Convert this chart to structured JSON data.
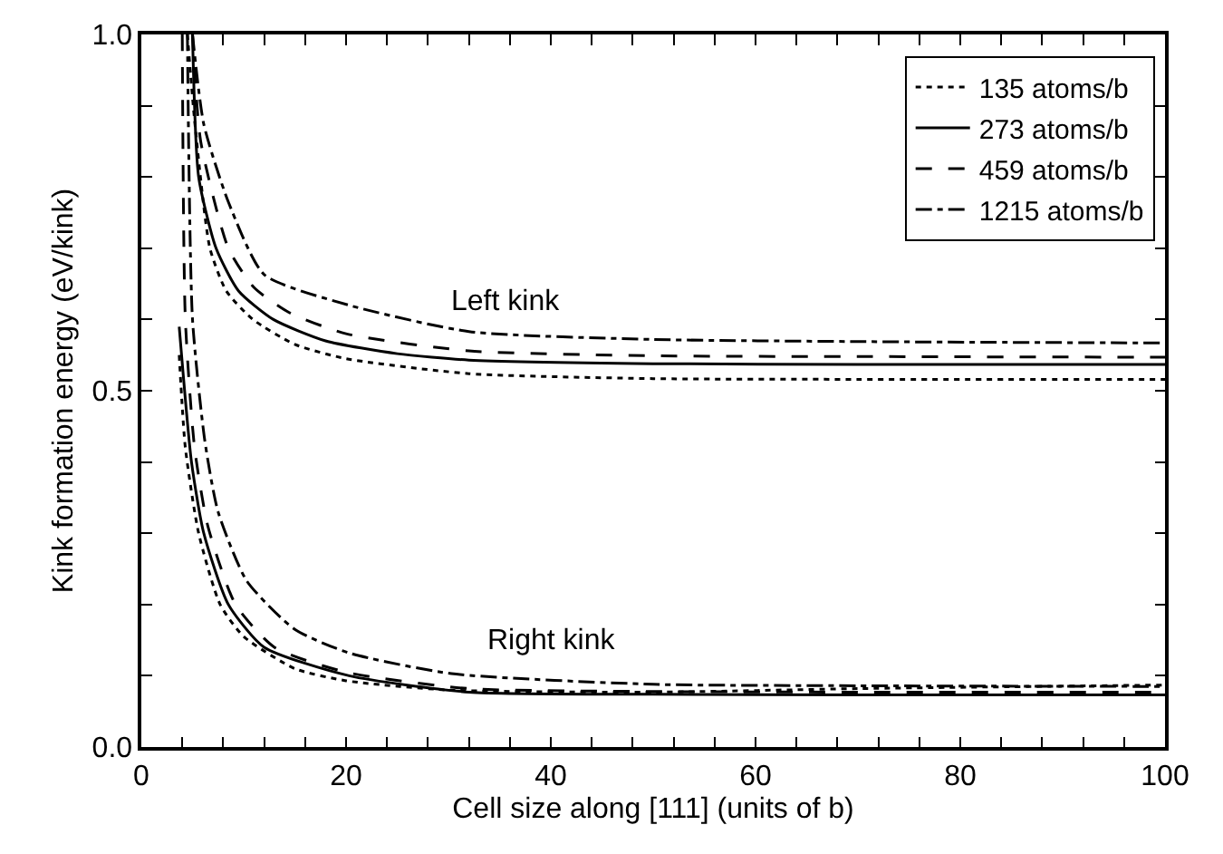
{
  "chart_data": {
    "type": "line",
    "xlabel": "Cell size along [111] (units of b)",
    "ylabel": "Kink formation energy (eV/kink)",
    "xlim": [
      0,
      100
    ],
    "xticks": [
      0,
      {
        "value": 4,
        "label": null
      },
      {
        "value": 8,
        "label": null
      },
      {
        "value": 12,
        "label": null
      },
      {
        "value": 16,
        "label": null
      },
      20,
      {
        "value": 24,
        "label": null
      },
      {
        "value": 28,
        "label": null
      },
      {
        "value": 32,
        "label": null
      },
      {
        "value": 36,
        "label": null
      },
      40,
      {
        "value": 44,
        "label": null
      },
      {
        "value": 48,
        "label": null
      },
      {
        "value": 52,
        "label": null
      },
      {
        "value": 56,
        "label": null
      },
      60,
      {
        "value": 64,
        "label": null
      },
      {
        "value": 68,
        "label": null
      },
      {
        "value": 72,
        "label": null
      },
      {
        "value": 76,
        "label": null
      },
      80,
      {
        "value": 84,
        "label": null
      },
      {
        "value": 88,
        "label": null
      },
      {
        "value": 92,
        "label": null
      },
      {
        "value": 96,
        "label": null
      },
      100
    ],
    "ylim": [
      0,
      1
    ],
    "yticks": [
      {
        "value": 0,
        "label": "0.0"
      },
      {
        "value": 0.1,
        "label": null
      },
      {
        "value": 0.2,
        "label": null
      },
      {
        "value": 0.3,
        "label": null
      },
      {
        "value": 0.4,
        "label": null
      },
      {
        "value": 0.5,
        "label": "0.5"
      },
      {
        "value": 0.6,
        "label": null
      },
      {
        "value": 0.7,
        "label": null
      },
      {
        "value": 0.8,
        "label": null
      },
      {
        "value": 0.9,
        "label": null
      },
      {
        "value": 1.0,
        "label": "1.0"
      }
    ],
    "legend": "top right",
    "marker": "none",
    "annotations": [
      "Left kink",
      "Right kink"
    ],
    "series": [
      {
        "name": "135 atoms/b",
        "color": "#000000",
        "line_style": "dotted",
        "x": [
          4.5,
          5.2,
          6.7,
          8.3,
          10.9,
          15,
          20,
          32,
          50,
          70,
          100
        ],
        "values": [
          1.0,
          0.88,
          0.7,
          0.64,
          0.6,
          0.565,
          0.545,
          0.524,
          0.517,
          0.516,
          0.516
        ]
      },
      {
        "name": "273 atoms/b",
        "color": "#000000",
        "line_style": "solid",
        "x": [
          5.0,
          5.6,
          7.3,
          9.5,
          12.9,
          18,
          25,
          32,
          50,
          70,
          100
        ],
        "values": [
          1.0,
          0.8,
          0.7,
          0.64,
          0.6,
          0.57,
          0.552,
          0.543,
          0.538,
          0.537,
          0.537
        ]
      },
      {
        "name": "459 atoms/b",
        "color": "#000000",
        "line_style": "dashed",
        "x": [
          5.0,
          5.8,
          8.5,
          11,
          14.4,
          20,
          32,
          50,
          70,
          100
        ],
        "values": [
          1.0,
          0.85,
          0.7,
          0.645,
          0.61,
          0.58,
          0.556,
          0.549,
          0.548,
          0.547
        ]
      },
      {
        "name": "1215 atoms/b",
        "color": "#000000",
        "line_style": "dashdot",
        "x": [
          5.0,
          6.1,
          8.5,
          12,
          20.3,
          32,
          50,
          70,
          100
        ],
        "values": [
          1.0,
          0.874,
          0.765,
          0.663,
          0.62,
          0.583,
          0.572,
          0.569,
          0.567
        ]
      },
      {
        "color": "#000000",
        "line_style": "dotted",
        "x": [
          3.7,
          4.3,
          5.6,
          7.7,
          10,
          15,
          20,
          30,
          50,
          70,
          100
        ],
        "values": [
          0.55,
          0.42,
          0.3,
          0.2,
          0.155,
          0.11,
          0.093,
          0.08,
          0.077,
          0.082,
          0.087
        ]
      },
      {
        "color": "#000000",
        "line_style": "solid",
        "x": [
          3.7,
          4.9,
          6.1,
          8.5,
          12,
          20.3,
          32,
          50,
          70,
          100
        ],
        "values": [
          0.59,
          0.4,
          0.3,
          0.2,
          0.14,
          0.1,
          0.077,
          0.074,
          0.073,
          0.073
        ]
      },
      {
        "color": "#000000",
        "line_style": "dashed",
        "x": [
          4.0,
          4.3,
          5.2,
          6.5,
          9.2,
          13,
          20,
          32,
          50,
          70,
          100
        ],
        "values": [
          1.0,
          0.6,
          0.42,
          0.31,
          0.2,
          0.14,
          0.105,
          0.082,
          0.078,
          0.077,
          0.077
        ]
      },
      {
        "color": "#000000",
        "line_style": "dashdot",
        "x": [
          4.5,
          5.0,
          6.2,
          7.5,
          10.3,
          15,
          20.3,
          30.3,
          50,
          70,
          100
        ],
        "values": [
          1.0,
          0.6,
          0.43,
          0.33,
          0.233,
          0.165,
          0.132,
          0.103,
          0.088,
          0.086,
          0.085
        ]
      }
    ]
  }
}
